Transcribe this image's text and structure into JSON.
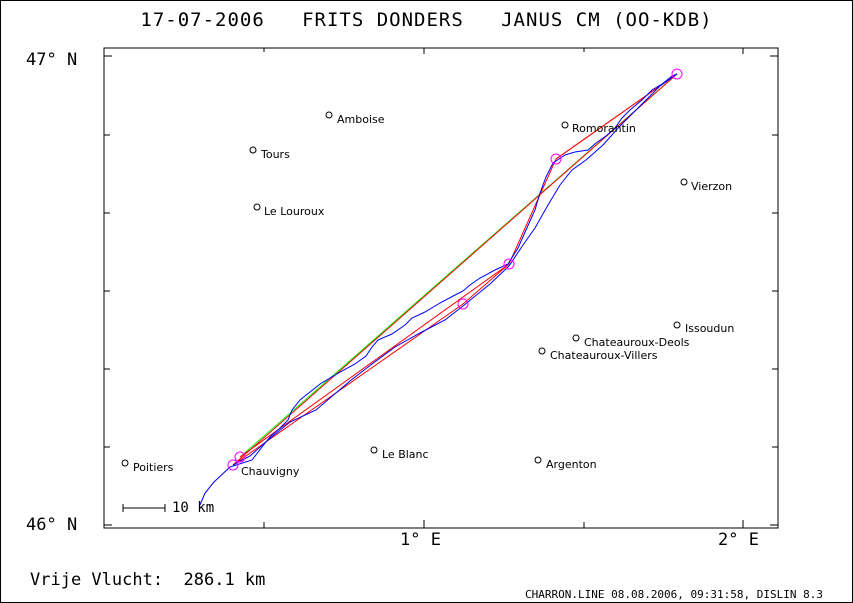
{
  "title": "17-07-2006   FRITS DONDERS   JANUS CM (OO-KDB)",
  "axes": {
    "y_top": "47° N",
    "y_bottom": "46° N",
    "x_ticks": [
      "1° E",
      "2° E"
    ]
  },
  "towns": [
    {
      "name": "Amboise"
    },
    {
      "name": "Tours"
    },
    {
      "name": "Le Louroux"
    },
    {
      "name": "Romorantin"
    },
    {
      "name": "Vierzon"
    },
    {
      "name": "Issoudun"
    },
    {
      "name": "Chateauroux-Deols"
    },
    {
      "name": "Chateauroux-Villers"
    },
    {
      "name": "Poitiers"
    },
    {
      "name": "Le Blanc"
    },
    {
      "name": "Argenton"
    },
    {
      "name": "Chauvigny"
    }
  ],
  "scale_bar": {
    "label": "10 km"
  },
  "free_flight": "Vrije Vlucht:  286.1 km",
  "footer": "CHARRON.LINE 08.08.2006, 09:31:58, DISLIN 8.3",
  "colors": {
    "track": "#0000ff",
    "triangle": "#ff0000",
    "free_line": "#00ff00",
    "turnpoint": "#ff00ff",
    "frame": "#000000"
  }
}
